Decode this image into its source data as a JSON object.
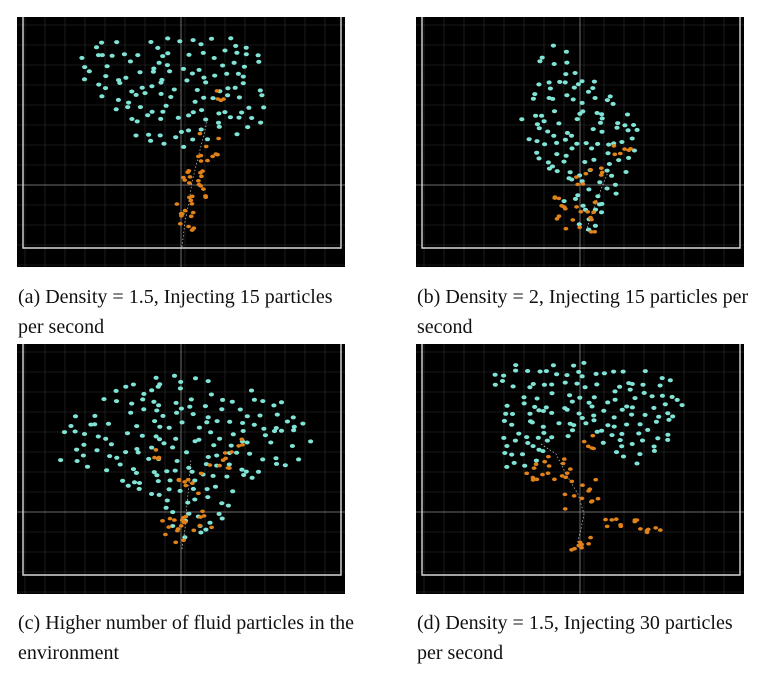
{
  "panels": [
    {
      "id": "a",
      "caption": "(a) Density = 1.5, Injecting 15 particles per second"
    },
    {
      "id": "b",
      "caption": "(b) Density = 2, Injecting 15 particles per second"
    },
    {
      "id": "c",
      "caption": "(c) Higher number of fluid particles in the environment"
    },
    {
      "id": "d",
      "caption": "(d) Density = 1.5, Injecting 30 particles per second"
    }
  ],
  "colors": {
    "background": "#000000",
    "grid": "#2f2f2f",
    "boundary": "#d9d9d9",
    "fluid_particle": "#7fe3d6",
    "injected_particle": "#e0821a",
    "trail": "#ffffff"
  }
}
